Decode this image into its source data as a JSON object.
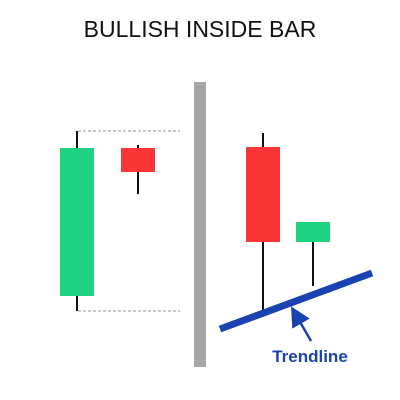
{
  "title": "BULLISH INSIDE BAR",
  "annotation": {
    "trendline_label": "Trendline"
  },
  "colors": {
    "bullish": "#1fd282",
    "bearish": "#f93535",
    "wick": "#111111",
    "divider": "#a6a6a6",
    "guide": "#aaaaaa",
    "trendline": "#1a42b0",
    "label": "#1a42b0"
  },
  "panels": [
    {
      "id": "left",
      "candles": [
        {
          "role": "mother-bar",
          "direction": "bullish"
        },
        {
          "role": "inside-bar",
          "direction": "bearish"
        }
      ],
      "guides": [
        "high",
        "low"
      ]
    },
    {
      "id": "right",
      "candles": [
        {
          "role": "mother-bar",
          "direction": "bearish"
        },
        {
          "role": "inside-bar",
          "direction": "bullish"
        }
      ],
      "trendline": true
    }
  ]
}
